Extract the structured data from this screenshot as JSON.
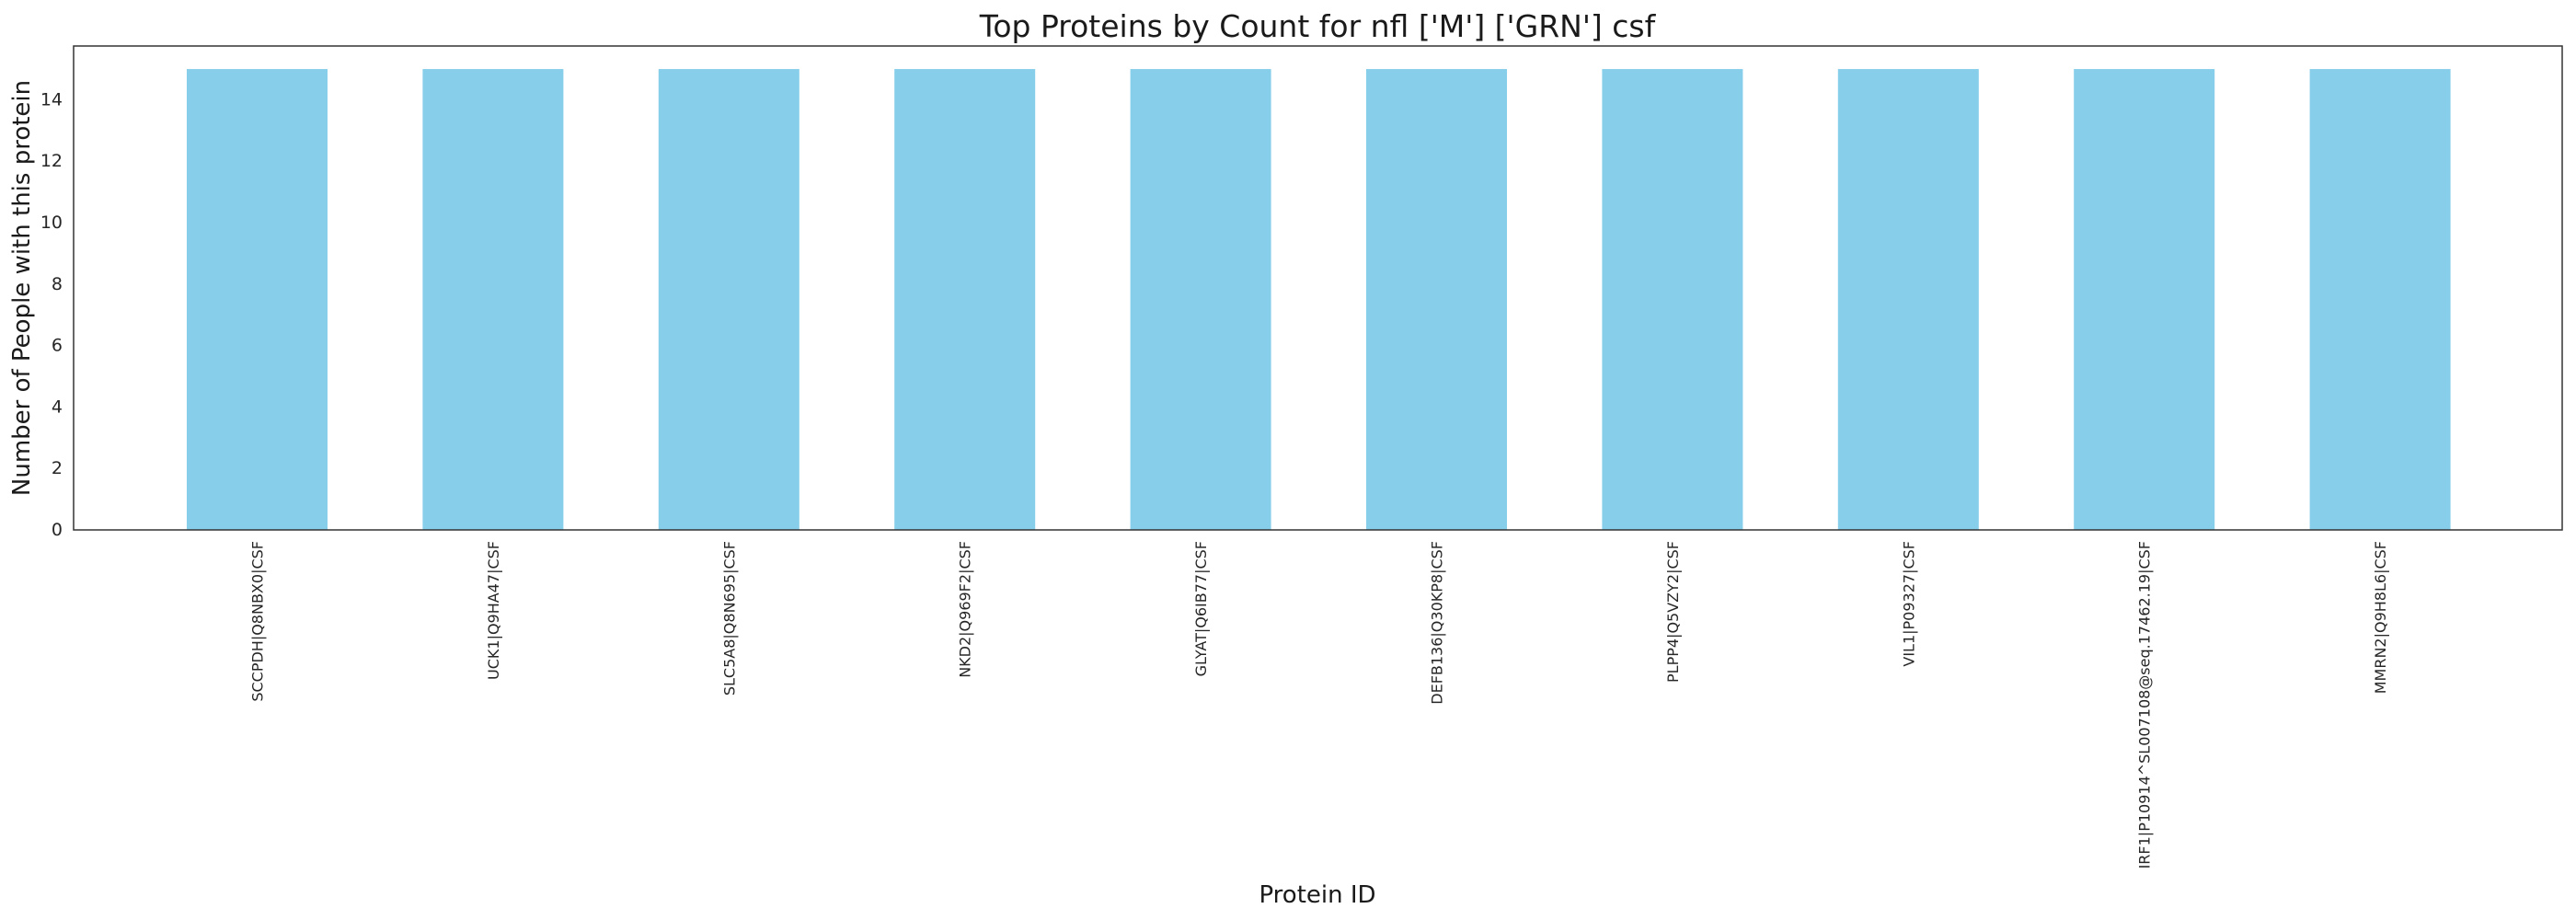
{
  "chart_data": {
    "type": "bar",
    "title": "Top Proteins by Count for nfl ['M'] ['GRN'] csf",
    "xlabel": "Protein ID",
    "ylabel": "Number of People with this protein",
    "categories": [
      "SCCPDH|Q8NBX0|CSF",
      "UCK1|Q9HA47|CSF",
      "SLC5A8|Q8N695|CSF",
      "NKD2|Q969F2|CSF",
      "GLYAT|Q6IB77|CSF",
      "DEFB136|Q30KP8|CSF",
      "PLPP4|Q5VZY2|CSF",
      "VIL1|P09327|CSF",
      "IRF1|P10914^SL007108@seq.17462.19|CSF",
      "MMRN2|Q9H8L6|CSF"
    ],
    "values": [
      15,
      15,
      15,
      15,
      15,
      15,
      15,
      15,
      15,
      15
    ],
    "ylim": [
      0,
      15.75
    ],
    "yticks": [
      0,
      2,
      4,
      6,
      8,
      10,
      12,
      14
    ],
    "grid": false,
    "bar_color": "#87CEEB"
  }
}
